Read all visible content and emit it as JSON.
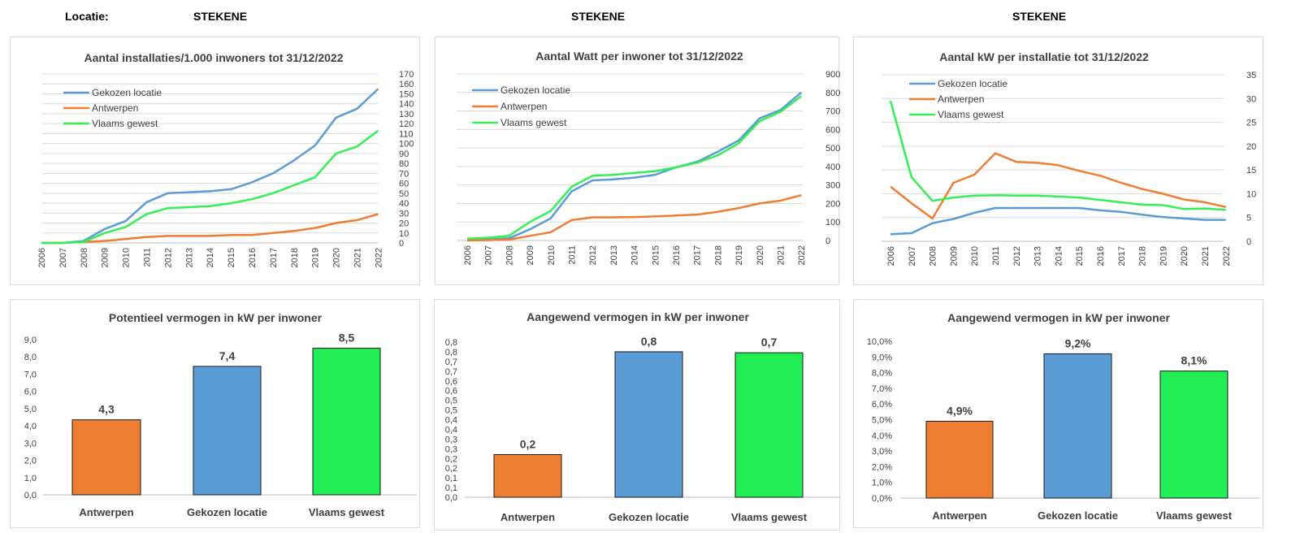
{
  "header": {
    "location_label": "Locatie:",
    "location_value": "STEKENE",
    "title_middle": "STEKENE",
    "title_right": "STEKENE"
  },
  "chart_data": [
    {
      "type": "line",
      "title": "Aantal installaties/1.000  inwoners tot 31/12/2022",
      "x": [
        "2006",
        "2007",
        "2008",
        "2009",
        "2010",
        "2011",
        "2012",
        "2013",
        "2014",
        "2015",
        "2016",
        "2017",
        "2018",
        "2019",
        "2020",
        "2021",
        "2022"
      ],
      "ylim": [
        0,
        170
      ],
      "yticks": [
        0,
        10,
        20,
        30,
        40,
        50,
        60,
        70,
        80,
        90,
        100,
        110,
        120,
        130,
        140,
        150,
        160,
        170
      ],
      "grid": true,
      "legend_position": "top-left",
      "y_axis_side": "right",
      "series": [
        {
          "name": "Gekozen locatie",
          "color": "#5b9bd5",
          "values": [
            0,
            0,
            2,
            14,
            22,
            41,
            50,
            51,
            52,
            54,
            61,
            70,
            83,
            98,
            126,
            135,
            155
          ]
        },
        {
          "name": "Antwerpen",
          "color": "#ed7d31",
          "values": [
            0,
            0,
            1,
            2,
            4,
            6,
            7,
            7,
            7,
            8,
            8,
            10,
            12,
            15,
            20,
            23,
            29
          ]
        },
        {
          "name": "Vlaams gewest",
          "color": "#33ee55",
          "values": [
            0,
            0,
            1,
            10,
            16,
            29,
            35,
            36,
            37,
            40,
            44,
            50,
            58,
            66,
            90,
            97,
            113
          ]
        }
      ]
    },
    {
      "type": "line",
      "title": "Aantal Watt per inwoner tot 31/12/2022",
      "x": [
        "2006",
        "2007",
        "2008",
        "2009",
        "2010",
        "2011",
        "2012",
        "2013",
        "2014",
        "2015",
        "2016",
        "2017",
        "2018",
        "2019",
        "2020",
        "2021",
        "2022"
      ],
      "ylim": [
        0,
        900
      ],
      "yticks": [
        0,
        100,
        200,
        300,
        400,
        500,
        600,
        700,
        800,
        900
      ],
      "grid": true,
      "legend_position": "top-left",
      "y_axis_side": "right",
      "series": [
        {
          "name": "Gekozen locatie",
          "color": "#5b9bd5",
          "values": [
            2,
            5,
            12,
            60,
            120,
            265,
            325,
            330,
            340,
            355,
            395,
            425,
            480,
            540,
            660,
            705,
            800
          ]
        },
        {
          "name": "Antwerpen",
          "color": "#ed7d31",
          "values": [
            0,
            2,
            5,
            25,
            45,
            110,
            125,
            125,
            127,
            130,
            135,
            140,
            155,
            175,
            200,
            215,
            245
          ]
        },
        {
          "name": "Vlaams gewest",
          "color": "#33ee55",
          "values": [
            10,
            15,
            25,
            100,
            160,
            290,
            350,
            355,
            365,
            375,
            395,
            420,
            460,
            525,
            645,
            695,
            780
          ]
        }
      ]
    },
    {
      "type": "line",
      "title": "Aantal kW per installatie  tot 31/12/2022",
      "x": [
        "2006",
        "2007",
        "2008",
        "2009",
        "2010",
        "2011",
        "2012",
        "2013",
        "2014",
        "2015",
        "2016",
        "2017",
        "2018",
        "2019",
        "2020",
        "2021",
        "2022"
      ],
      "ylim": [
        0,
        35
      ],
      "yticks": [
        0,
        5,
        10,
        15,
        20,
        25,
        30,
        35
      ],
      "grid": true,
      "legend_position": "top-left",
      "y_axis_side": "right",
      "series": [
        {
          "name": "Gekozen locatie",
          "color": "#5b9bd5",
          "values": [
            1.5,
            1.7,
            3.8,
            4.7,
            6,
            7,
            7,
            7,
            7,
            7,
            6.5,
            6.2,
            5.6,
            5.1,
            4.8,
            4.5,
            4.5
          ]
        },
        {
          "name": "Antwerpen",
          "color": "#ed7d31",
          "values": [
            11.5,
            8,
            4.8,
            12.3,
            14,
            18.5,
            16.7,
            16.5,
            16,
            14.8,
            13.8,
            12.3,
            11,
            10,
            8.8,
            8.2,
            7.2
          ]
        },
        {
          "name": "Vlaams gewest",
          "color": "#33ee55",
          "values": [
            29.5,
            13.5,
            8.5,
            9.2,
            9.6,
            9.7,
            9.6,
            9.6,
            9.4,
            9.2,
            8.7,
            8.2,
            7.7,
            7.6,
            6.8,
            6.9,
            6.6
          ]
        }
      ]
    },
    {
      "type": "bar",
      "title": "Potentieel  vermogen in kW per inwoner",
      "categories": [
        "Antwerpen",
        "Gekozen locatie",
        "Vlaams gewest"
      ],
      "values": [
        4.35,
        7.45,
        8.5
      ],
      "labels": [
        "4,3",
        "7,4",
        "8,5"
      ],
      "colors": [
        "#ed7d31",
        "#5b9bd5",
        "#22ee55"
      ],
      "ylim": [
        0,
        9
      ],
      "yticks": [
        "0,0",
        "1,0",
        "2,0",
        "3,0",
        "4,0",
        "5,0",
        "6,0",
        "7,0",
        "8,0",
        "9,0"
      ],
      "grid": false
    },
    {
      "type": "bar",
      "title": "Aangewend vermogen in kW per inwoner",
      "categories": [
        "Antwerpen",
        "Gekozen locatie",
        "Vlaams gewest"
      ],
      "values": [
        0.22,
        0.75,
        0.745
      ],
      "labels": [
        "0,2",
        "0,8",
        "0,7"
      ],
      "colors": [
        "#ed7d31",
        "#5b9bd5",
        "#22ee55"
      ],
      "ylim": [
        0,
        0.8
      ],
      "yticks": [
        "0,0",
        "0,1",
        "0,1",
        "0,2",
        "0,2",
        "0,3",
        "0,3",
        "0,4",
        "0,4",
        "0,5",
        "0,5",
        "0,6",
        "0,6",
        "0,7",
        "0,7",
        "0,8",
        "0,8"
      ],
      "grid": false
    },
    {
      "type": "bar",
      "title": "Aangewend vermogen in kW per inwoner",
      "categories": [
        "Antwerpen",
        "Gekozen locatie",
        "Vlaams gewest"
      ],
      "values": [
        4.9,
        9.2,
        8.1
      ],
      "labels": [
        "4,9%",
        "9,2%",
        "8,1%"
      ],
      "colors": [
        "#ed7d31",
        "#5b9bd5",
        "#22ee55"
      ],
      "ylim": [
        0,
        10
      ],
      "yticks": [
        "0,0%",
        "1,0%",
        "2,0%",
        "3,0%",
        "4,0%",
        "5,0%",
        "6,0%",
        "7,0%",
        "8,0%",
        "9,0%",
        "10,0%"
      ],
      "grid": false
    }
  ]
}
